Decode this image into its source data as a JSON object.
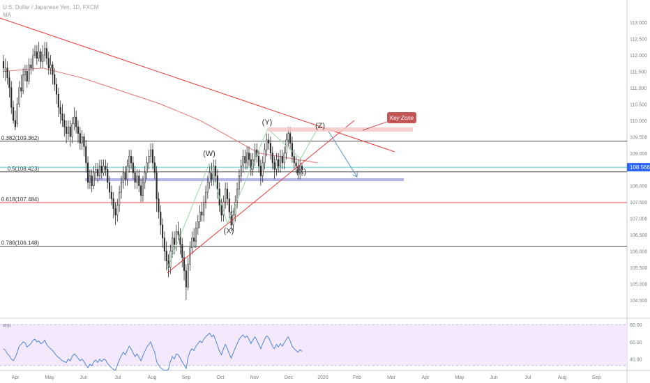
{
  "header": {
    "symbol": "U.S. Dollar / Japanese Yen, 1D, FXCM",
    "indicator": "MA"
  },
  "price_axis": {
    "ticks": [
      "113.000",
      "112.500",
      "112.000",
      "111.500",
      "111.000",
      "110.500",
      "110.000",
      "109.500",
      "109.000",
      "108.500",
      "108.000",
      "107.500",
      "107.000",
      "106.500",
      "106.000",
      "105.500",
      "105.000",
      "104.500"
    ],
    "current_price": "108.566"
  },
  "rsi_axis": {
    "ticks": [
      "80.00",
      "60.00",
      "40.00"
    ],
    "indicator_label": "RSI"
  },
  "time_axis": {
    "labels": [
      "Apr",
      "May",
      "Jun",
      "Jul",
      "Aug",
      "Sep",
      "Oct",
      "Nov",
      "Dec",
      "2020",
      "Feb",
      "Mar",
      "Apr",
      "May",
      "Jun",
      "Jul",
      "Aug",
      "Sep"
    ]
  },
  "annotations": {
    "fib_levels": [
      {
        "label": "0.382(109.362)",
        "value": 109.362,
        "color": "#333333"
      },
      {
        "label": "0.5(108.423)",
        "value": 108.423,
        "color": "#333333"
      },
      {
        "label": "0.618(107.484)",
        "value": 107.484,
        "color": "#e53935"
      },
      {
        "label": "0.786(106.148)",
        "value": 106.148,
        "color": "#333333"
      }
    ],
    "waves": [
      "(W)",
      "(X)",
      "(Y)",
      "(X)",
      "(Z)"
    ],
    "key_zone": "Key Zone"
  },
  "colors": {
    "up": "#2b2b2b",
    "down": "#2b2b2b",
    "ma": "#e57373",
    "trend": "#e53935",
    "support_band": "#b3b3e6",
    "key_zone_fill": "#f8c8c8",
    "key_zone_box": "#c45656",
    "rsi_bg": "#f3e8fc",
    "rsi_line": "#3a7bd5",
    "projection": "#5a8fc0",
    "current": "#2962ff"
  },
  "chart_data": {
    "type": "candlestick",
    "title": "U.S. Dollar / Japanese Yen, 1D, FXCM",
    "ylim": [
      104.2,
      113.3
    ],
    "series": [
      {
        "name": "USDJPY",
        "values": [
          [
            111.8,
            111.6,
            112.0,
            111.3
          ],
          [
            111.5,
            111.6,
            111.9,
            111.2
          ],
          [
            111.6,
            111.3,
            111.8,
            111.1
          ],
          [
            111.3,
            111.0,
            111.5,
            110.7
          ],
          [
            111.0,
            110.4,
            111.2,
            110.2
          ],
          [
            110.4,
            110.0,
            110.6,
            109.9
          ],
          [
            110.0,
            109.8,
            110.3,
            109.7
          ],
          [
            109.9,
            110.5,
            110.7,
            109.8
          ],
          [
            110.5,
            111.0,
            111.2,
            110.4
          ],
          [
            111.0,
            110.9,
            111.4,
            110.7
          ],
          [
            110.9,
            111.4,
            111.6,
            110.8
          ],
          [
            111.4,
            111.5,
            111.7,
            111.2
          ],
          [
            111.5,
            111.2,
            111.7,
            111.0
          ],
          [
            111.2,
            111.7,
            111.9,
            111.1
          ],
          [
            111.7,
            111.6,
            111.9,
            111.4
          ],
          [
            111.6,
            112.0,
            112.2,
            111.5
          ],
          [
            112.0,
            112.1,
            112.3,
            111.9
          ],
          [
            112.1,
            111.9,
            112.3,
            111.7
          ],
          [
            111.9,
            112.1,
            112.4,
            111.8
          ],
          [
            112.1,
            111.8,
            112.2,
            111.6
          ],
          [
            111.8,
            112.0,
            112.3,
            111.6
          ],
          [
            112.0,
            112.2,
            112.4,
            111.8
          ],
          [
            112.2,
            111.9,
            112.4,
            111.7
          ],
          [
            111.9,
            111.6,
            112.1,
            111.4
          ],
          [
            111.6,
            111.7,
            112.0,
            111.4
          ],
          [
            111.7,
            111.4,
            111.8,
            111.1
          ],
          [
            111.4,
            111.1,
            111.6,
            110.9
          ],
          [
            111.1,
            110.8,
            111.3,
            110.5
          ],
          [
            110.8,
            110.4,
            111.0,
            110.1
          ],
          [
            110.4,
            110.2,
            110.6,
            109.9
          ],
          [
            110.2,
            110.0,
            110.5,
            109.8
          ],
          [
            110.0,
            109.8,
            110.2,
            109.5
          ],
          [
            109.8,
            109.6,
            110.0,
            109.3
          ],
          [
            109.6,
            109.8,
            110.0,
            109.4
          ],
          [
            109.8,
            109.5,
            110.0,
            109.2
          ],
          [
            109.5,
            109.9,
            110.1,
            109.3
          ],
          [
            109.9,
            110.1,
            110.4,
            109.7
          ],
          [
            110.1,
            109.8,
            110.3,
            109.6
          ],
          [
            109.8,
            109.6,
            110.0,
            109.3
          ],
          [
            109.6,
            109.3,
            109.8,
            109.1
          ],
          [
            109.3,
            109.5,
            109.7,
            109.1
          ],
          [
            109.5,
            109.2,
            109.6,
            108.9
          ],
          [
            109.2,
            108.7,
            109.4,
            108.4
          ],
          [
            108.7,
            108.1,
            108.9,
            107.9
          ],
          [
            108.1,
            108.3,
            108.5,
            107.9
          ],
          [
            108.3,
            108.0,
            108.5,
            107.8
          ],
          [
            108.0,
            108.4,
            108.6,
            107.9
          ],
          [
            108.4,
            108.5,
            108.7,
            108.2
          ],
          [
            108.5,
            108.3,
            108.7,
            108.1
          ],
          [
            108.3,
            108.6,
            108.8,
            108.2
          ],
          [
            108.6,
            108.4,
            108.8,
            108.2
          ],
          [
            108.4,
            108.6,
            108.8,
            108.3
          ],
          [
            108.6,
            108.5,
            108.8,
            108.3
          ],
          [
            108.5,
            108.1,
            108.7,
            107.9
          ],
          [
            108.1,
            107.8,
            108.3,
            107.6
          ],
          [
            107.8,
            107.6,
            108.0,
            107.4
          ],
          [
            107.6,
            107.3,
            107.8,
            107.0
          ],
          [
            107.3,
            107.1,
            107.5,
            106.8
          ],
          [
            107.1,
            107.4,
            107.6,
            106.9
          ],
          [
            107.4,
            107.8,
            108.0,
            107.2
          ],
          [
            107.8,
            108.1,
            108.3,
            107.6
          ],
          [
            108.1,
            108.4,
            108.6,
            107.9
          ],
          [
            108.4,
            108.2,
            108.6,
            108.0
          ],
          [
            108.2,
            108.6,
            108.8,
            108.0
          ],
          [
            108.6,
            108.9,
            109.1,
            108.4
          ],
          [
            108.9,
            108.7,
            109.1,
            108.5
          ],
          [
            108.7,
            108.4,
            108.9,
            108.2
          ],
          [
            108.4,
            108.1,
            108.6,
            107.9
          ],
          [
            108.1,
            108.3,
            108.5,
            107.9
          ],
          [
            108.3,
            108.0,
            108.5,
            107.8
          ],
          [
            108.0,
            107.7,
            108.2,
            107.5
          ],
          [
            107.7,
            108.1,
            108.3,
            107.5
          ],
          [
            108.1,
            108.4,
            108.6,
            107.9
          ],
          [
            108.4,
            108.7,
            108.9,
            108.2
          ],
          [
            108.7,
            108.9,
            109.1,
            108.5
          ],
          [
            108.9,
            109.1,
            109.3,
            108.7
          ],
          [
            109.1,
            108.7,
            109.3,
            108.5
          ],
          [
            108.7,
            108.4,
            108.9,
            108.2
          ],
          [
            108.4,
            107.6,
            108.6,
            107.2
          ],
          [
            107.6,
            107.2,
            107.8,
            107.0
          ],
          [
            107.2,
            106.8,
            107.4,
            106.5
          ],
          [
            106.8,
            106.4,
            107.0,
            106.1
          ],
          [
            106.4,
            106.0,
            106.6,
            105.7
          ],
          [
            106.0,
            105.7,
            106.3,
            105.4
          ],
          [
            105.7,
            105.5,
            105.9,
            105.2
          ],
          [
            105.5,
            106.0,
            106.2,
            105.3
          ],
          [
            106.0,
            106.4,
            106.6,
            105.8
          ],
          [
            106.4,
            106.2,
            106.6,
            105.9
          ],
          [
            106.2,
            106.6,
            106.8,
            106.0
          ],
          [
            106.6,
            106.5,
            106.9,
            106.3
          ],
          [
            106.5,
            106.2,
            106.7,
            105.9
          ],
          [
            106.2,
            105.8,
            106.4,
            105.5
          ],
          [
            105.8,
            105.4,
            106.0,
            105.1
          ],
          [
            105.4,
            104.9,
            105.6,
            104.5
          ],
          [
            104.9,
            105.6,
            105.8,
            104.8
          ],
          [
            105.6,
            106.1,
            106.3,
            105.4
          ],
          [
            106.1,
            106.4,
            106.6,
            105.9
          ],
          [
            106.4,
            106.3,
            106.7,
            106.1
          ],
          [
            106.3,
            106.7,
            106.9,
            106.1
          ],
          [
            106.7,
            106.9,
            107.1,
            106.5
          ],
          [
            106.9,
            107.2,
            107.4,
            106.7
          ],
          [
            107.2,
            107.1,
            107.5,
            106.9
          ],
          [
            107.1,
            107.5,
            107.7,
            106.9
          ],
          [
            107.5,
            107.8,
            108.0,
            107.3
          ],
          [
            107.8,
            108.1,
            108.3,
            107.6
          ],
          [
            108.1,
            108.4,
            108.6,
            107.9
          ],
          [
            108.4,
            108.2,
            108.7,
            108.0
          ],
          [
            108.2,
            108.6,
            108.8,
            108.0
          ],
          [
            108.6,
            108.3,
            108.8,
            108.1
          ],
          [
            108.3,
            107.9,
            108.5,
            107.6
          ],
          [
            107.9,
            107.4,
            108.1,
            107.2
          ],
          [
            107.4,
            107.1,
            107.6,
            106.9
          ],
          [
            107.1,
            107.5,
            107.7,
            106.9
          ],
          [
            107.5,
            107.9,
            108.1,
            107.3
          ],
          [
            107.9,
            107.6,
            108.1,
            107.4
          ],
          [
            107.6,
            107.2,
            107.8,
            107.0
          ],
          [
            107.2,
            106.8,
            107.4,
            106.6
          ],
          [
            106.8,
            107.1,
            107.3,
            106.6
          ],
          [
            107.1,
            107.5,
            107.7,
            106.9
          ],
          [
            107.5,
            107.9,
            108.1,
            107.3
          ],
          [
            107.9,
            108.3,
            108.5,
            107.7
          ],
          [
            108.3,
            108.6,
            108.8,
            108.1
          ],
          [
            108.6,
            108.9,
            109.1,
            108.4
          ],
          [
            108.9,
            108.7,
            109.1,
            108.5
          ],
          [
            108.7,
            109.0,
            109.2,
            108.5
          ],
          [
            109.0,
            108.8,
            109.2,
            108.6
          ],
          [
            108.8,
            108.5,
            109.0,
            108.3
          ],
          [
            108.5,
            108.8,
            109.0,
            108.3
          ],
          [
            108.8,
            109.1,
            109.3,
            108.6
          ],
          [
            109.1,
            108.9,
            109.3,
            108.7
          ],
          [
            108.9,
            108.6,
            109.1,
            108.4
          ],
          [
            108.6,
            108.3,
            108.8,
            108.0
          ],
          [
            108.3,
            108.7,
            108.9,
            108.1
          ],
          [
            108.7,
            109.1,
            109.3,
            108.5
          ],
          [
            109.1,
            109.4,
            109.6,
            108.9
          ],
          [
            109.4,
            109.3,
            109.6,
            109.1
          ],
          [
            109.3,
            109.0,
            109.5,
            108.8
          ],
          [
            109.0,
            108.7,
            109.2,
            108.5
          ],
          [
            108.7,
            108.5,
            108.9,
            108.2
          ],
          [
            108.5,
            108.8,
            109.0,
            108.3
          ],
          [
            108.8,
            108.6,
            109.0,
            108.4
          ],
          [
            108.6,
            108.9,
            109.1,
            108.4
          ],
          [
            108.9,
            108.7,
            109.1,
            108.5
          ],
          [
            108.7,
            109.0,
            109.2,
            108.5
          ],
          [
            109.0,
            109.4,
            109.6,
            108.8
          ],
          [
            109.4,
            109.6,
            109.8,
            109.2
          ],
          [
            109.6,
            109.3,
            109.8,
            109.1
          ],
          [
            109.3,
            108.9,
            109.5,
            108.7
          ],
          [
            108.9,
            108.7,
            109.1,
            108.5
          ],
          [
            108.7,
            108.6,
            108.9,
            108.4
          ],
          [
            108.6,
            108.4,
            108.8,
            108.2
          ],
          [
            108.4,
            108.6,
            108.8,
            108.2
          ],
          [
            108.6,
            108.5,
            108.7,
            108.3
          ]
        ]
      },
      {
        "name": "MA",
        "values": [
          [
            0,
            111.5
          ],
          [
            20,
            111.6
          ],
          [
            40,
            111.3
          ],
          [
            60,
            110.9
          ],
          [
            80,
            110.5
          ],
          [
            100,
            110.0
          ],
          [
            115,
            109.5
          ],
          [
            130,
            109.0
          ],
          [
            140,
            108.9
          ],
          [
            150,
            108.8
          ],
          [
            160,
            108.7
          ]
        ]
      }
    ],
    "rsi": [
      52,
      50,
      46,
      44,
      40,
      38,
      42,
      48,
      55,
      57,
      60,
      59,
      54,
      56,
      58,
      62,
      63,
      60,
      61,
      58,
      59,
      62,
      57,
      54,
      52,
      50,
      47,
      44,
      42,
      40,
      38,
      37,
      36,
      40,
      38,
      43,
      46,
      44,
      41,
      38,
      40,
      37,
      33,
      30,
      34,
      32,
      37,
      39,
      36,
      40,
      37,
      40,
      39,
      35,
      32,
      30,
      28,
      27,
      33,
      39,
      44,
      48,
      45,
      50,
      55,
      52,
      47,
      43,
      46,
      42,
      38,
      44,
      49,
      54,
      57,
      60,
      53,
      48,
      37,
      33,
      30,
      28,
      27,
      27,
      28,
      37,
      43,
      40,
      46,
      45,
      41,
      37,
      33,
      29,
      42,
      49,
      52,
      50,
      55,
      58,
      61,
      59,
      63,
      66,
      68,
      70,
      66,
      68,
      62,
      56,
      49,
      45,
      52,
      57,
      52,
      46,
      41,
      47,
      53,
      58,
      63,
      66,
      68,
      65,
      67,
      63,
      58,
      62,
      66,
      62,
      57,
      52,
      58,
      63,
      67,
      65,
      60,
      55,
      52,
      57,
      54,
      58,
      55,
      59,
      63,
      66,
      61,
      55,
      52,
      50,
      48,
      51,
      49
    ],
    "rsi_ylim": [
      30,
      85
    ]
  }
}
